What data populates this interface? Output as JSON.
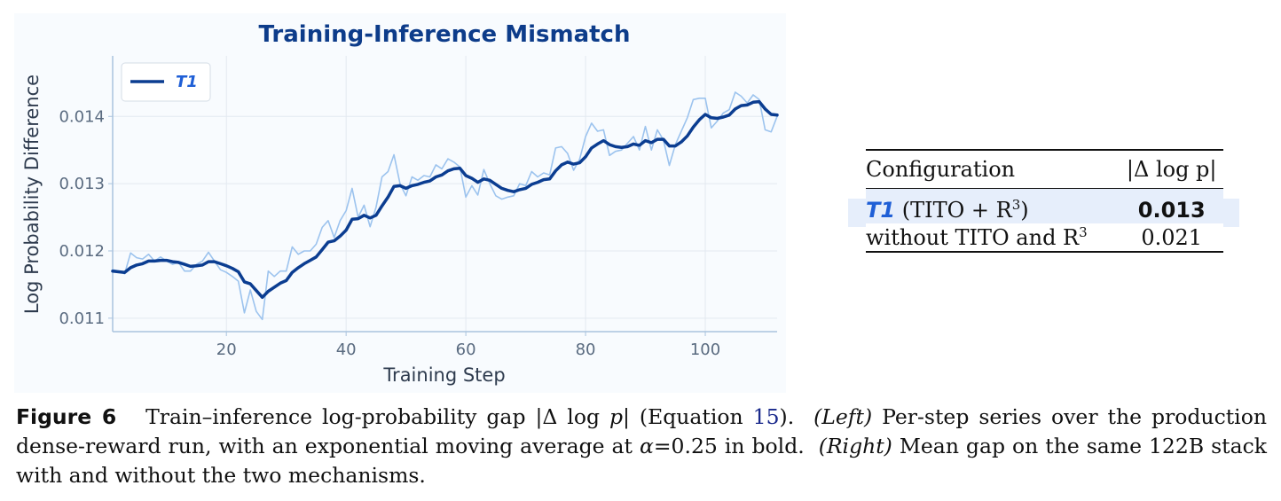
{
  "chart_data": {
    "type": "line",
    "title": "Training-Inference Mismatch",
    "xlabel": "Training Step",
    "ylabel": "Log Probability Difference",
    "xlim": [
      1,
      112
    ],
    "ylim": [
      0.0108,
      0.0149
    ],
    "xticks": [
      20,
      40,
      60,
      80,
      100
    ],
    "xtick_labels": [
      "20",
      "40",
      "60",
      "80",
      "100"
    ],
    "yticks": [
      0.011,
      0.012,
      0.013,
      0.014
    ],
    "ytick_labels": [
      "0.011",
      "0.012",
      "0.013",
      "0.014"
    ],
    "grid": true,
    "legend_position": "top-left",
    "series": [
      {
        "name": "T1",
        "style": "raw",
        "color": "#9cc3ee",
        "x": [
          1,
          2,
          3,
          4,
          5,
          6,
          7,
          8,
          9,
          10,
          11,
          12,
          13,
          14,
          15,
          16,
          17,
          18,
          19,
          20,
          21,
          22,
          23,
          24,
          25,
          26,
          27,
          28,
          29,
          30,
          31,
          32,
          33,
          34,
          35,
          36,
          37,
          38,
          39,
          40,
          41,
          42,
          43,
          44,
          45,
          46,
          47,
          48,
          49,
          50,
          51,
          52,
          53,
          54,
          55,
          56,
          57,
          58,
          59,
          60,
          61,
          62,
          63,
          64,
          65,
          66,
          67,
          68,
          69,
          70,
          71,
          72,
          73,
          74,
          75,
          76,
          77,
          78,
          79,
          80,
          81,
          82,
          83,
          84,
          85,
          86,
          87,
          88,
          89,
          90,
          91,
          92,
          93,
          94,
          95,
          96,
          97,
          98,
          99,
          100,
          101,
          102,
          103,
          104,
          105,
          106,
          107,
          108,
          109,
          110,
          111,
          112
        ],
        "y": [
          0.01172,
          0.0117,
          0.01166,
          0.01197,
          0.0119,
          0.01188,
          0.01195,
          0.01185,
          0.01191,
          0.01185,
          0.0118,
          0.01183,
          0.0117,
          0.0117,
          0.0118,
          0.01185,
          0.01198,
          0.01185,
          0.01172,
          0.01168,
          0.01162,
          0.01155,
          0.01108,
          0.01142,
          0.0111,
          0.01098,
          0.0117,
          0.01162,
          0.0117,
          0.0117,
          0.01206,
          0.01195,
          0.012,
          0.012,
          0.0121,
          0.01235,
          0.01245,
          0.0122,
          0.01245,
          0.0126,
          0.01293,
          0.0125,
          0.01268,
          0.01236,
          0.01265,
          0.0131,
          0.01318,
          0.01343,
          0.013,
          0.01282,
          0.0131,
          0.01305,
          0.01312,
          0.0131,
          0.01328,
          0.01322,
          0.01337,
          0.01332,
          0.01325,
          0.0128,
          0.01297,
          0.01283,
          0.01321,
          0.013,
          0.01282,
          0.01277,
          0.0128,
          0.01282,
          0.013,
          0.01297,
          0.01318,
          0.0131,
          0.01316,
          0.01313,
          0.01353,
          0.01355,
          0.01345,
          0.0132,
          0.01336,
          0.0137,
          0.0139,
          0.01378,
          0.0138,
          0.01342,
          0.01348,
          0.0135,
          0.0136,
          0.0137,
          0.0135,
          0.01385,
          0.0135,
          0.0138,
          0.01365,
          0.01327,
          0.01358,
          0.01378,
          0.01398,
          0.01425,
          0.01427,
          0.01427,
          0.01383,
          0.01393,
          0.01405,
          0.0141,
          0.01436,
          0.0143,
          0.0142,
          0.01432,
          0.01425,
          0.0138,
          0.01377,
          0.014
        ]
      },
      {
        "name": "T1",
        "style": "ema",
        "color": "#0b3d91",
        "x": [
          1,
          2,
          3,
          4,
          5,
          6,
          7,
          8,
          9,
          10,
          11,
          12,
          13,
          14,
          15,
          16,
          17,
          18,
          19,
          20,
          21,
          22,
          23,
          24,
          25,
          26,
          27,
          28,
          29,
          30,
          31,
          32,
          33,
          34,
          35,
          36,
          37,
          38,
          39,
          40,
          41,
          42,
          43,
          44,
          45,
          46,
          47,
          48,
          49,
          50,
          51,
          52,
          53,
          54,
          55,
          56,
          57,
          58,
          59,
          60,
          61,
          62,
          63,
          64,
          65,
          66,
          67,
          68,
          69,
          70,
          71,
          72,
          73,
          74,
          75,
          76,
          77,
          78,
          79,
          80,
          81,
          82,
          83,
          84,
          85,
          86,
          87,
          88,
          89,
          90,
          91,
          92,
          93,
          94,
          95,
          96,
          97,
          98,
          99,
          100,
          101,
          102,
          103,
          104,
          105,
          106,
          107,
          108,
          109,
          110,
          111,
          112
        ],
        "y": [
          0.0117,
          0.01169,
          0.01168,
          0.01175,
          0.01179,
          0.01181,
          0.01185,
          0.01185,
          0.01186,
          0.01186,
          0.01184,
          0.01183,
          0.0118,
          0.01177,
          0.01178,
          0.01179,
          0.01184,
          0.01184,
          0.01181,
          0.01178,
          0.01174,
          0.01169,
          0.01154,
          0.01151,
          0.01141,
          0.01131,
          0.0114,
          0.01146,
          0.01152,
          0.01156,
          0.01168,
          0.01175,
          0.01181,
          0.01186,
          0.01191,
          0.01202,
          0.01213,
          0.01215,
          0.01222,
          0.01231,
          0.01247,
          0.01248,
          0.01253,
          0.01249,
          0.01253,
          0.01267,
          0.0128,
          0.01296,
          0.01297,
          0.01293,
          0.01297,
          0.01299,
          0.01302,
          0.01304,
          0.0131,
          0.01313,
          0.01319,
          0.01322,
          0.01323,
          0.01312,
          0.01308,
          0.01302,
          0.01307,
          0.01305,
          0.01299,
          0.01293,
          0.0129,
          0.01288,
          0.01291,
          0.01293,
          0.01299,
          0.01302,
          0.01306,
          0.01307,
          0.01319,
          0.01328,
          0.01332,
          0.01329,
          0.01331,
          0.0134,
          0.01353,
          0.01359,
          0.01364,
          0.01358,
          0.01355,
          0.01354,
          0.01355,
          0.01359,
          0.01357,
          0.01364,
          0.01361,
          0.01366,
          0.01366,
          0.01356,
          0.01356,
          0.01362,
          0.01371,
          0.01384,
          0.01395,
          0.01403,
          0.01398,
          0.01397,
          0.01399,
          0.01402,
          0.01411,
          0.01416,
          0.01417,
          0.01421,
          0.01422,
          0.01411,
          0.01403,
          0.01402
        ]
      }
    ]
  },
  "table": {
    "headers": [
      "Configuration",
      "|Δ log p|"
    ],
    "rows": [
      {
        "model": "T1",
        "config": "(TITO + R",
        "config_sup": "3",
        "config_end": ")",
        "value": "0.013"
      },
      {
        "config": "without TITO and R",
        "config_sup": "3",
        "value": "0.021"
      }
    ]
  },
  "caption": {
    "label": "Figure 6",
    "text_1": "Train–inference log-probability gap |Δ log ",
    "var_p": "p",
    "text_2": "| (Equation ",
    "eq_ref": "15",
    "text_3": ").",
    "left_label": "(Left)",
    "text_4": " Per-step series over the production dense-reward run, with an exponential moving average at ",
    "alpha": "α",
    "text_5": "=0.25 in bold.",
    "right_label": "(Right)",
    "text_6": " Mean gap on the same 122B stack with and without the two mechanisms."
  }
}
